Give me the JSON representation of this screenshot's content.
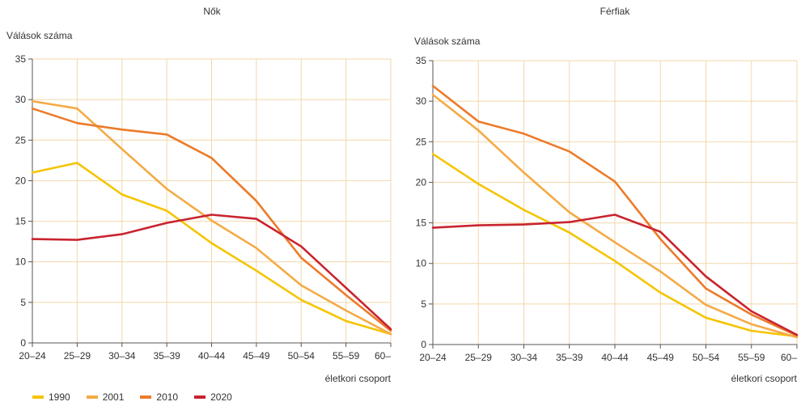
{
  "chart_data": [
    {
      "type": "line",
      "title": "Nők",
      "ylabel": "Válások száma",
      "xlabel": "életkori csoport",
      "categories": [
        "20–24",
        "25–29",
        "30–34",
        "35–39",
        "40–44",
        "45–49",
        "50–54",
        "55–59",
        "60–"
      ],
      "ylim": [
        0,
        35
      ],
      "yticks": [
        0,
        5,
        10,
        15,
        20,
        25,
        30,
        35
      ],
      "grid": true,
      "series": [
        {
          "name": "1990",
          "values": [
            21.0,
            22.2,
            18.3,
            16.3,
            12.3,
            8.9,
            5.3,
            2.7,
            1.1
          ]
        },
        {
          "name": "2001",
          "values": [
            29.8,
            28.9,
            23.9,
            19.0,
            15.1,
            11.7,
            7.1,
            4.0,
            1.1
          ]
        },
        {
          "name": "2010",
          "values": [
            28.9,
            27.1,
            26.3,
            25.7,
            22.8,
            17.5,
            10.5,
            5.9,
            1.5
          ]
        },
        {
          "name": "2020",
          "values": [
            12.8,
            12.7,
            13.4,
            14.8,
            15.8,
            15.3,
            11.9,
            6.8,
            1.7
          ]
        }
      ]
    },
    {
      "type": "line",
      "title": "Férfiak",
      "ylabel": "Válások száma",
      "xlabel": "életkori csoport",
      "categories": [
        "20–24",
        "25–29",
        "30–34",
        "35–39",
        "40–44",
        "45–49",
        "50–54",
        "55–59",
        "60–"
      ],
      "ylim": [
        0,
        35
      ],
      "yticks": [
        0,
        5,
        10,
        15,
        20,
        25,
        30,
        35
      ],
      "grid": true,
      "series": [
        {
          "name": "1990",
          "values": [
            23.5,
            19.8,
            16.6,
            13.8,
            10.3,
            6.4,
            3.3,
            1.7,
            1.0
          ]
        },
        {
          "name": "2001",
          "values": [
            30.8,
            26.4,
            21.2,
            16.3,
            12.6,
            9.0,
            4.9,
            2.5,
            0.9
          ]
        },
        {
          "name": "2010",
          "values": [
            31.9,
            27.5,
            26.0,
            23.8,
            20.1,
            13.0,
            6.9,
            3.7,
            1.1
          ]
        },
        {
          "name": "2020",
          "values": [
            14.4,
            14.7,
            14.8,
            15.1,
            16.0,
            13.9,
            8.4,
            4.1,
            1.2
          ]
        }
      ]
    }
  ],
  "legend": [
    {
      "label": "1990",
      "color": "#f5c400"
    },
    {
      "label": "2001",
      "color": "#f4aa45"
    },
    {
      "label": "2010",
      "color": "#ec7b2a"
    },
    {
      "label": "2020",
      "color": "#c8242f"
    }
  ],
  "colors": {
    "grid": "#f2d7a9",
    "axis": "#555555",
    "text": "#333333"
  }
}
